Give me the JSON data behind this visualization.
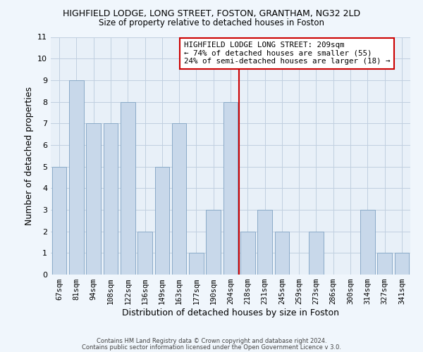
{
  "title": "HIGHFIELD LODGE, LONG STREET, FOSTON, GRANTHAM, NG32 2LD",
  "subtitle": "Size of property relative to detached houses in Foston",
  "xlabel": "Distribution of detached houses by size in Foston",
  "ylabel": "Number of detached properties",
  "bar_labels": [
    "67sqm",
    "81sqm",
    "94sqm",
    "108sqm",
    "122sqm",
    "136sqm",
    "149sqm",
    "163sqm",
    "177sqm",
    "190sqm",
    "204sqm",
    "218sqm",
    "231sqm",
    "245sqm",
    "259sqm",
    "273sqm",
    "286sqm",
    "300sqm",
    "314sqm",
    "327sqm",
    "341sqm"
  ],
  "bar_values": [
    5,
    9,
    7,
    7,
    8,
    2,
    5,
    7,
    1,
    3,
    8,
    2,
    3,
    2,
    0,
    2,
    0,
    0,
    3,
    1,
    1
  ],
  "bar_color": "#c8d8ea",
  "bar_edgecolor": "#8aaac8",
  "vline_x": 10.5,
  "vline_color": "#cc0000",
  "ylim": [
    0,
    11
  ],
  "yticks": [
    0,
    1,
    2,
    3,
    4,
    5,
    6,
    7,
    8,
    9,
    10,
    11
  ],
  "annotation_line1": "HIGHFIELD LODGE LONG STREET: 209sqm",
  "annotation_line2": "← 74% of detached houses are smaller (55)",
  "annotation_line3": "24% of semi-detached houses are larger (18) →",
  "grid_color": "#c0cfe0",
  "bg_color": "#e8f0f8",
  "fig_bg_color": "#f0f6fc",
  "footnote1": "Contains HM Land Registry data © Crown copyright and database right 2024.",
  "footnote2": "Contains public sector information licensed under the Open Government Licence v 3.0."
}
